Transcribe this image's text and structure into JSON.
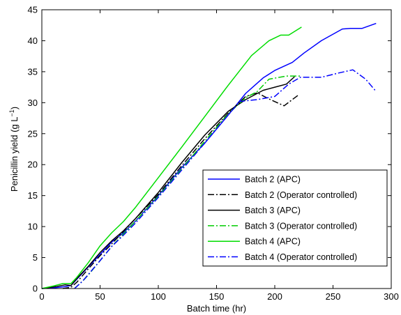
{
  "chart_data": {
    "type": "line",
    "xlabel": "Batch time (hr)",
    "ylabel": "Penicillin yield (g L",
    "ylabel_sup": "−1",
    "ylabel_close": ")",
    "xlim": [
      0,
      300
    ],
    "ylim": [
      0,
      45
    ],
    "xticks": [
      0,
      50,
      100,
      150,
      200,
      250,
      300
    ],
    "yticks": [
      0,
      5,
      10,
      15,
      20,
      25,
      30,
      35,
      40,
      45
    ],
    "grid": false,
    "legend_position": "bottom-right",
    "series": [
      {
        "name": "Batch 2 (APC)",
        "color": "#0000ff",
        "dash": "solid",
        "x": [
          0,
          10,
          20,
          25,
          30,
          40,
          50,
          60,
          70,
          80,
          100,
          120,
          140,
          160,
          175,
          190,
          200,
          215,
          225,
          240,
          258,
          265,
          275,
          287
        ],
        "y": [
          0,
          0.1,
          0.3,
          0.5,
          1.5,
          3.5,
          5.5,
          7.5,
          9,
          10.8,
          15,
          19.5,
          23.5,
          28,
          31.5,
          34,
          35.2,
          36.5,
          38,
          40,
          41.9,
          42,
          42,
          42.8
        ]
      },
      {
        "name": "Batch 2 (Operator controlled)",
        "color": "#000000",
        "dash": "dashdot",
        "x": [
          18,
          25,
          30,
          40,
          50,
          60,
          70,
          80,
          100,
          120,
          140,
          160,
          175,
          185,
          195,
          208,
          220
        ],
        "y": [
          0,
          0.2,
          1,
          3.2,
          5.3,
          7.2,
          9.2,
          11.2,
          15.2,
          19.8,
          24.2,
          28.3,
          31,
          31.6,
          30.6,
          29.5,
          31.2
        ]
      },
      {
        "name": "Batch 3 (APC)",
        "color": "#000000",
        "dash": "solid",
        "x": [
          0,
          12,
          20,
          25,
          30,
          40,
          50,
          60,
          70,
          80,
          100,
          120,
          140,
          160,
          175,
          190,
          200,
          210,
          217
        ],
        "y": [
          0,
          0.3,
          0.6,
          0.5,
          1.6,
          3.6,
          5.8,
          7.7,
          9.3,
          11.2,
          15.5,
          20.3,
          24.8,
          28.6,
          30.5,
          32,
          32.5,
          33,
          34.2
        ]
      },
      {
        "name": "Batch 3 (Operator controlled)",
        "color": "#00cc00",
        "dash": "dashdot",
        "x": [
          28,
          35,
          40,
          50,
          60,
          70,
          80,
          100,
          120,
          140,
          160,
          175,
          185,
          195,
          210,
          222
        ],
        "y": [
          0,
          1.2,
          2.2,
          4.5,
          6.8,
          8.8,
          10.8,
          14.9,
          19.3,
          23.8,
          28.2,
          30.8,
          31.8,
          33.8,
          34.3,
          34.3
        ]
      },
      {
        "name": "Batch 4 (APC)",
        "color": "#00dd00",
        "dash": "solid",
        "x": [
          0,
          10,
          18,
          25,
          30,
          40,
          50,
          60,
          70,
          80,
          100,
          120,
          140,
          160,
          180,
          195,
          205,
          212,
          223
        ],
        "y": [
          0,
          0.4,
          0.8,
          0.8,
          1.8,
          4.2,
          6.9,
          9,
          10.8,
          13,
          17.9,
          22.8,
          27.8,
          32.8,
          37.6,
          40,
          40.9,
          40.9,
          42.2
        ]
      },
      {
        "name": "Batch 4 (Operator controlled)",
        "color": "#0000ff",
        "dash": "dashdot",
        "x": [
          28,
          35,
          40,
          50,
          60,
          70,
          80,
          100,
          120,
          140,
          160,
          170,
          185,
          200,
          212,
          222,
          240,
          255,
          267,
          278,
          287
        ],
        "y": [
          0,
          1.2,
          2.3,
          4.5,
          6.8,
          8.6,
          10.5,
          14.7,
          19.1,
          23.5,
          28,
          30.2,
          30.5,
          31,
          33,
          34.1,
          34.1,
          34.8,
          35.3,
          33.8,
          31.8
        ]
      }
    ]
  }
}
